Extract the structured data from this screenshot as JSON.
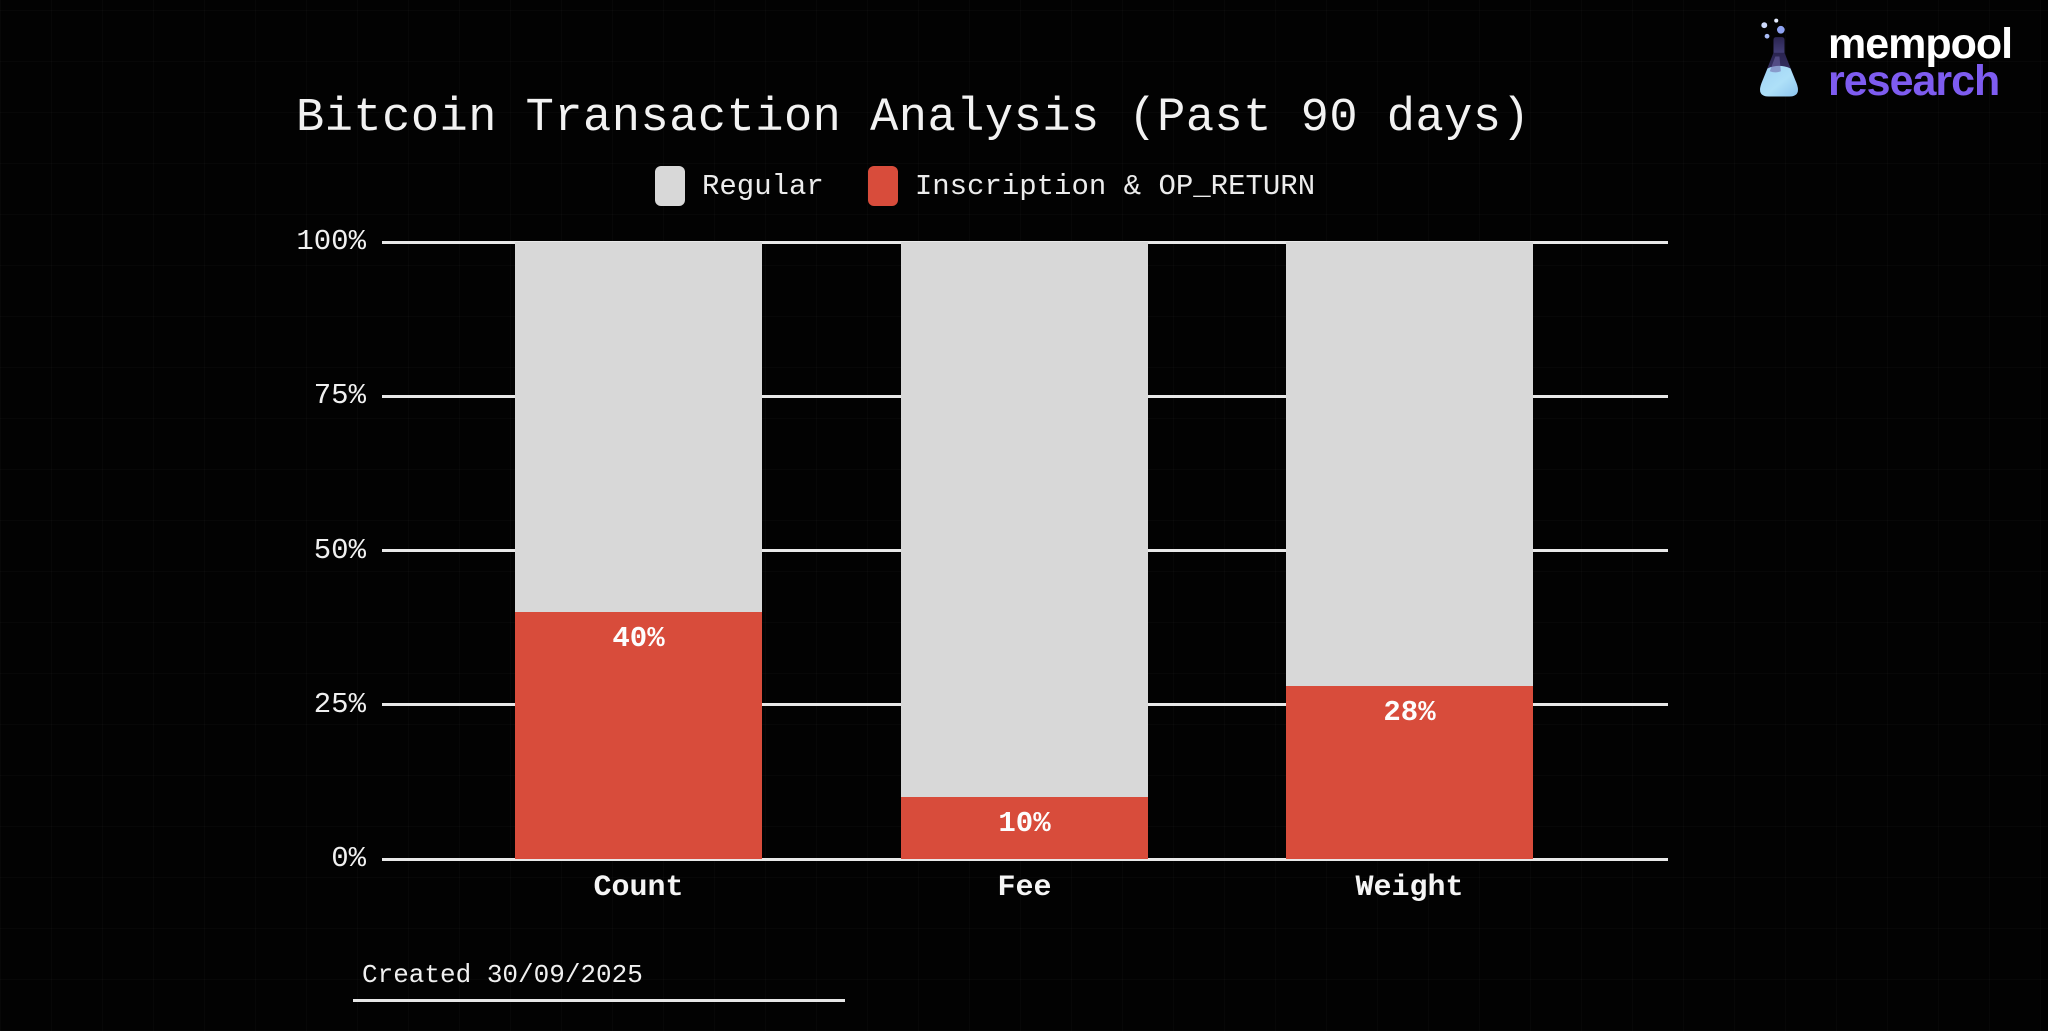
{
  "brand": {
    "name_line1": "mempool",
    "name_line2": "research",
    "accent_purple": "#7e5cf0"
  },
  "colors": {
    "background": "#000000",
    "gridline": "#e8e8e8",
    "text": "#f2f2f2",
    "regular_gray": "#d8d8d8",
    "inscription_red": "#d84c3b"
  },
  "chart_data": {
    "type": "bar",
    "stacked": true,
    "title": "Bitcoin Transaction Analysis (Past 90 days)",
    "categories": [
      "Count",
      "Fee",
      "Weight"
    ],
    "series": [
      {
        "name": "Inscription & OP_RETURN",
        "color": "#d84c3b",
        "values": [
          40,
          10,
          28
        ]
      },
      {
        "name": "Regular",
        "color": "#d8d8d8",
        "values": [
          60,
          90,
          72
        ]
      }
    ],
    "value_labels": [
      "40%",
      "10%",
      "28%"
    ],
    "y_ticks": [
      {
        "label": "100%",
        "value": 100
      },
      {
        "label": "75%",
        "value": 75
      },
      {
        "label": "50%",
        "value": 50
      },
      {
        "label": "25%",
        "value": 25
      },
      {
        "label": "0%",
        "value": 0
      }
    ],
    "ylim": [
      0,
      100
    ],
    "grid": true,
    "legend_position": "top"
  },
  "legend": [
    {
      "label": "Regular",
      "color": "#d8d8d8"
    },
    {
      "label": "Inscription & OP_RETURN",
      "color": "#d84c3b"
    }
  ],
  "footer": {
    "created_note": "Created 30/09/2025"
  }
}
